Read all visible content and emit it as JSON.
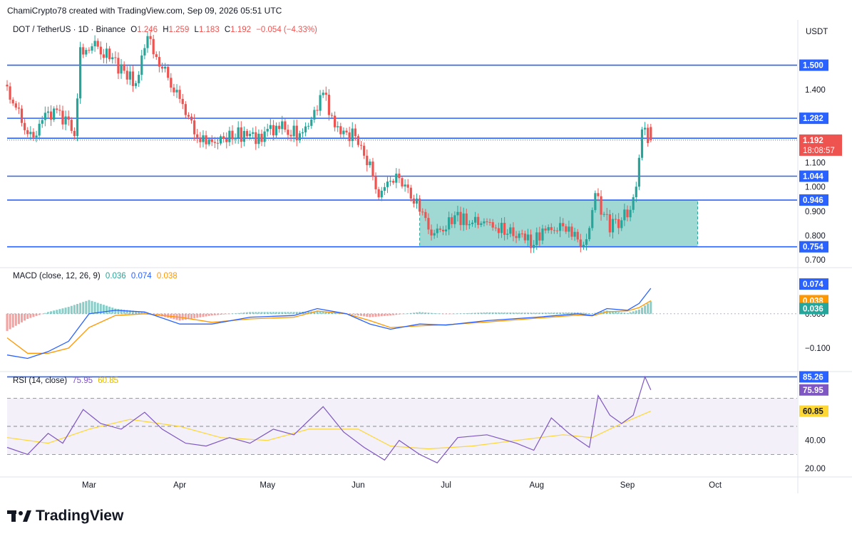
{
  "header": {
    "publisher_line": "ChamiCrypto78 created with TradingView.com, Sep 09, 2026 05:51 UTC"
  },
  "main_legend": {
    "symbol": "DOT / TetherUS · 1D · Binance",
    "open_label": "O",
    "open": "1.246",
    "high_label": "H",
    "high": "1.259",
    "low_label": "L",
    "low": "1.183",
    "close_label": "C",
    "close": "1.192",
    "change": "−0.054 (−4.33%)"
  },
  "currency_label": "USDT",
  "macd_legend": {
    "label": "MACD (close, 12, 26, 9)",
    "hist": "0.036",
    "macd": "0.074",
    "signal": "0.038"
  },
  "rsi_legend": {
    "label": "RSI (14, close)",
    "rsi": "75.95",
    "ma": "60.85"
  },
  "countdown": "18:08:57",
  "brand": {
    "name": "TradingView"
  },
  "colors": {
    "up": "#26a69a",
    "down": "#ef5350",
    "hline": "#2962ff",
    "zone_fill": "#80cbc4",
    "macd_line": "#2962ff",
    "signal_line": "#ff9800",
    "rsi_line": "#7e57c2",
    "rsi_ma": "#fdd835",
    "text": "#131722",
    "axis_text": "#131722"
  },
  "chart_data": {
    "type": "candlestick",
    "title": "DOT / TetherUS · 1D · Binance",
    "x_tick_labels": [
      "Mar",
      "Apr",
      "May",
      "Jun",
      "Jul",
      "Aug",
      "Sep",
      "Oct"
    ],
    "x_tick_dates": [
      "2026-03-01",
      "2026-04-01",
      "2026-05-01",
      "2026-06-01",
      "2026-07-01",
      "2026-08-01",
      "2026-09-01",
      "2026-10-01"
    ],
    "x_range": [
      "2026-02-01",
      "2026-10-29"
    ],
    "price": {
      "ylim": [
        0.68,
        1.68
      ],
      "y_ticks": [
        "1.400",
        "1.100",
        "1.000",
        "0.900",
        "0.800",
        "0.700"
      ],
      "horizontal_lines": [
        1.5,
        1.282,
        1.2,
        1.044,
        0.946,
        0.754
      ],
      "badges": [
        {
          "label": "1.500",
          "value": 1.5,
          "kind": "line"
        },
        {
          "label": "1.282",
          "value": 1.282,
          "kind": "line"
        },
        {
          "label": "1.200",
          "value": 1.2,
          "kind": "plain"
        },
        {
          "label": "1.192",
          "value": 1.192,
          "kind": "last"
        },
        {
          "label": "1.044",
          "value": 1.044,
          "kind": "line"
        },
        {
          "label": "0.946",
          "value": 0.946,
          "kind": "line"
        },
        {
          "label": "0.754",
          "value": 0.754,
          "kind": "line"
        }
      ],
      "zone": {
        "from": "2026-06-22",
        "to": "2026-09-25",
        "low": 0.754,
        "high": 0.946
      },
      "last_close": 1.192,
      "last_candle": {
        "date": "2026-09-09",
        "open": 1.246,
        "high": 1.259,
        "low": 1.183,
        "close": 1.192
      },
      "monthly_closes": [
        {
          "date": "2026-02-01",
          "close": 1.42
        },
        {
          "date": "2026-02-10",
          "close": 1.2
        },
        {
          "date": "2026-02-18",
          "close": 1.32
        },
        {
          "date": "2026-02-25",
          "close": 1.22
        },
        {
          "date": "2026-02-27",
          "close": 1.55
        },
        {
          "date": "2026-03-05",
          "close": 1.58
        },
        {
          "date": "2026-03-12",
          "close": 1.49
        },
        {
          "date": "2026-03-18",
          "close": 1.43
        },
        {
          "date": "2026-03-22",
          "close": 1.6
        },
        {
          "date": "2026-03-28",
          "close": 1.48
        },
        {
          "date": "2026-04-03",
          "close": 1.32
        },
        {
          "date": "2026-04-10",
          "close": 1.19
        },
        {
          "date": "2026-04-20",
          "close": 1.22
        },
        {
          "date": "2026-04-30",
          "close": 1.2
        },
        {
          "date": "2026-05-06",
          "close": 1.25
        },
        {
          "date": "2026-05-14",
          "close": 1.21
        },
        {
          "date": "2026-05-21",
          "close": 1.38
        },
        {
          "date": "2026-05-26",
          "close": 1.23
        },
        {
          "date": "2026-05-31",
          "close": 1.21
        },
        {
          "date": "2026-06-06",
          "close": 1.1
        },
        {
          "date": "2026-06-09",
          "close": 0.96
        },
        {
          "date": "2026-06-15",
          "close": 1.03
        },
        {
          "date": "2026-06-22",
          "close": 0.93
        },
        {
          "date": "2026-06-28",
          "close": 0.8
        },
        {
          "date": "2026-07-05",
          "close": 0.87
        },
        {
          "date": "2026-07-15",
          "close": 0.85
        },
        {
          "date": "2026-07-25",
          "close": 0.82
        },
        {
          "date": "2026-07-31",
          "close": 0.77
        },
        {
          "date": "2026-08-06",
          "close": 0.84
        },
        {
          "date": "2026-08-15",
          "close": 0.8
        },
        {
          "date": "2026-08-19",
          "close": 0.76
        },
        {
          "date": "2026-08-22",
          "close": 0.97
        },
        {
          "date": "2026-08-27",
          "close": 0.83
        },
        {
          "date": "2026-09-02",
          "close": 0.89
        },
        {
          "date": "2026-09-05",
          "close": 0.98
        },
        {
          "date": "2026-09-07",
          "close": 1.24
        },
        {
          "date": "2026-09-09",
          "close": 1.192
        }
      ]
    },
    "macd": {
      "ylim": [
        -0.16,
        0.13
      ],
      "y_ticks": [
        "0.000",
        "−0.100"
      ],
      "badges": [
        {
          "label": "0.074",
          "value": 0.074,
          "color": "#2962ff"
        },
        {
          "label": "0.038",
          "value": 0.038,
          "color": "#ff9800"
        },
        {
          "label": "0.036",
          "value": 0.036,
          "color": "#26a69a"
        }
      ],
      "macd_series": [
        {
          "date": "2026-02-01",
          "value": -0.12
        },
        {
          "date": "2026-02-08",
          "value": -0.13
        },
        {
          "date": "2026-02-15",
          "value": -0.11
        },
        {
          "date": "2026-02-22",
          "value": -0.08
        },
        {
          "date": "2026-03-01",
          "value": 0.0
        },
        {
          "date": "2026-03-10",
          "value": 0.01
        },
        {
          "date": "2026-03-20",
          "value": 0.005
        },
        {
          "date": "2026-04-01",
          "value": -0.03
        },
        {
          "date": "2026-04-12",
          "value": -0.03
        },
        {
          "date": "2026-04-25",
          "value": -0.01
        },
        {
          "date": "2026-05-10",
          "value": -0.005
        },
        {
          "date": "2026-05-18",
          "value": 0.015
        },
        {
          "date": "2026-05-28",
          "value": 0.0
        },
        {
          "date": "2026-06-05",
          "value": -0.03
        },
        {
          "date": "2026-06-12",
          "value": -0.045
        },
        {
          "date": "2026-06-22",
          "value": -0.03
        },
        {
          "date": "2026-07-01",
          "value": -0.033
        },
        {
          "date": "2026-07-15",
          "value": -0.02
        },
        {
          "date": "2026-08-01",
          "value": -0.01
        },
        {
          "date": "2026-08-15",
          "value": 0.0
        },
        {
          "date": "2026-08-20",
          "value": -0.005
        },
        {
          "date": "2026-08-25",
          "value": 0.015
        },
        {
          "date": "2026-09-01",
          "value": 0.01
        },
        {
          "date": "2026-09-05",
          "value": 0.03
        },
        {
          "date": "2026-09-09",
          "value": 0.074
        }
      ],
      "signal_series": [
        {
          "date": "2026-02-01",
          "value": -0.07
        },
        {
          "date": "2026-02-08",
          "value": -0.115
        },
        {
          "date": "2026-02-15",
          "value": -0.115
        },
        {
          "date": "2026-02-22",
          "value": -0.1
        },
        {
          "date": "2026-03-01",
          "value": -0.04
        },
        {
          "date": "2026-03-10",
          "value": -0.005
        },
        {
          "date": "2026-03-20",
          "value": 0.0
        },
        {
          "date": "2026-04-01",
          "value": -0.01
        },
        {
          "date": "2026-04-12",
          "value": -0.025
        },
        {
          "date": "2026-04-25",
          "value": -0.015
        },
        {
          "date": "2026-05-10",
          "value": -0.01
        },
        {
          "date": "2026-05-18",
          "value": 0.008
        },
        {
          "date": "2026-05-28",
          "value": 0.0
        },
        {
          "date": "2026-06-05",
          "value": -0.02
        },
        {
          "date": "2026-06-12",
          "value": -0.04
        },
        {
          "date": "2026-06-22",
          "value": -0.035
        },
        {
          "date": "2026-07-01",
          "value": -0.032
        },
        {
          "date": "2026-07-15",
          "value": -0.024
        },
        {
          "date": "2026-08-01",
          "value": -0.013
        },
        {
          "date": "2026-08-15",
          "value": -0.004
        },
        {
          "date": "2026-08-20",
          "value": -0.006
        },
        {
          "date": "2026-08-25",
          "value": 0.006
        },
        {
          "date": "2026-09-01",
          "value": 0.008
        },
        {
          "date": "2026-09-05",
          "value": 0.018
        },
        {
          "date": "2026-09-09",
          "value": 0.038
        }
      ]
    },
    "rsi": {
      "ylim": [
        15,
        88
      ],
      "y_ticks": [
        "40.00",
        "20.00"
      ],
      "bands": [
        70,
        50,
        30
      ],
      "badges": [
        {
          "label": "85.26",
          "value": 85.26,
          "color": "#2962ff"
        },
        {
          "label": "75.95",
          "value": 75.95,
          "color": "#7e57c2"
        },
        {
          "label": "60.85",
          "value": 60.85,
          "color": "#fdd835"
        }
      ],
      "rsi_series": [
        {
          "date": "2026-02-01",
          "value": 35
        },
        {
          "date": "2026-02-08",
          "value": 30
        },
        {
          "date": "2026-02-15",
          "value": 45
        },
        {
          "date": "2026-02-20",
          "value": 38
        },
        {
          "date": "2026-02-27",
          "value": 62
        },
        {
          "date": "2026-03-05",
          "value": 52
        },
        {
          "date": "2026-03-12",
          "value": 48
        },
        {
          "date": "2026-03-20",
          "value": 60
        },
        {
          "date": "2026-03-26",
          "value": 48
        },
        {
          "date": "2026-04-03",
          "value": 38
        },
        {
          "date": "2026-04-10",
          "value": 36
        },
        {
          "date": "2026-04-18",
          "value": 42
        },
        {
          "date": "2026-04-25",
          "value": 38
        },
        {
          "date": "2026-05-03",
          "value": 48
        },
        {
          "date": "2026-05-10",
          "value": 44
        },
        {
          "date": "2026-05-20",
          "value": 64
        },
        {
          "date": "2026-05-27",
          "value": 46
        },
        {
          "date": "2026-06-03",
          "value": 35
        },
        {
          "date": "2026-06-10",
          "value": 26
        },
        {
          "date": "2026-06-15",
          "value": 40
        },
        {
          "date": "2026-06-22",
          "value": 30
        },
        {
          "date": "2026-06-28",
          "value": 24
        },
        {
          "date": "2026-07-05",
          "value": 42
        },
        {
          "date": "2026-07-15",
          "value": 44
        },
        {
          "date": "2026-07-25",
          "value": 38
        },
        {
          "date": "2026-07-31",
          "value": 33
        },
        {
          "date": "2026-08-06",
          "value": 56
        },
        {
          "date": "2026-08-12",
          "value": 45
        },
        {
          "date": "2026-08-19",
          "value": 35
        },
        {
          "date": "2026-08-22",
          "value": 72
        },
        {
          "date": "2026-08-26",
          "value": 58
        },
        {
          "date": "2026-08-30",
          "value": 52
        },
        {
          "date": "2026-09-03",
          "value": 58
        },
        {
          "date": "2026-09-07",
          "value": 85.26
        },
        {
          "date": "2026-09-09",
          "value": 75.95
        }
      ],
      "ma_series": [
        {
          "date": "2026-02-01",
          "value": 42
        },
        {
          "date": "2026-02-15",
          "value": 38
        },
        {
          "date": "2026-03-01",
          "value": 48
        },
        {
          "date": "2026-03-15",
          "value": 55
        },
        {
          "date": "2026-04-01",
          "value": 50
        },
        {
          "date": "2026-04-15",
          "value": 42
        },
        {
          "date": "2026-05-01",
          "value": 40
        },
        {
          "date": "2026-05-15",
          "value": 48
        },
        {
          "date": "2026-06-01",
          "value": 48
        },
        {
          "date": "2026-06-12",
          "value": 36
        },
        {
          "date": "2026-06-25",
          "value": 34
        },
        {
          "date": "2026-07-10",
          "value": 36
        },
        {
          "date": "2026-07-25",
          "value": 40
        },
        {
          "date": "2026-08-10",
          "value": 44
        },
        {
          "date": "2026-08-20",
          "value": 42
        },
        {
          "date": "2026-08-30",
          "value": 52
        },
        {
          "date": "2026-09-09",
          "value": 60.85
        }
      ]
    }
  }
}
